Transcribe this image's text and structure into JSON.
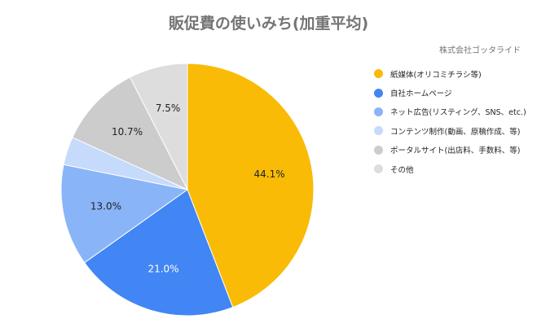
{
  "chart_data": {
    "type": "pie",
    "title": "販促費の使いみち(加重平均)",
    "subtitle": "株式会社ゴッタライド",
    "slices": [
      {
        "label": "紙媒体(オリコミチラシ等)",
        "value": 44.1,
        "color": "#F9BB05",
        "value_label": "44.1%"
      },
      {
        "label": "自社ホームページ",
        "value": 21.0,
        "color": "#4285F4",
        "value_label": "21.0%"
      },
      {
        "label": "ネット広告(リスティング、SNS、etc.)",
        "value": 13.0,
        "color": "#8AB4F8",
        "value_label": "13.0%"
      },
      {
        "label": "コンテンツ制作(動画、原稿作成、等)",
        "value": 3.6,
        "color": "#C6DAFC",
        "value_label": ""
      },
      {
        "label": "ポータルサイト(出店料、手数料、等)",
        "value": 10.7,
        "color": "#CCCCCC",
        "value_label": "10.7%"
      },
      {
        "label": "その他",
        "value": 7.5,
        "color": "#DDDDDD",
        "value_label": "7.5%"
      }
    ],
    "legend_position": "right"
  }
}
